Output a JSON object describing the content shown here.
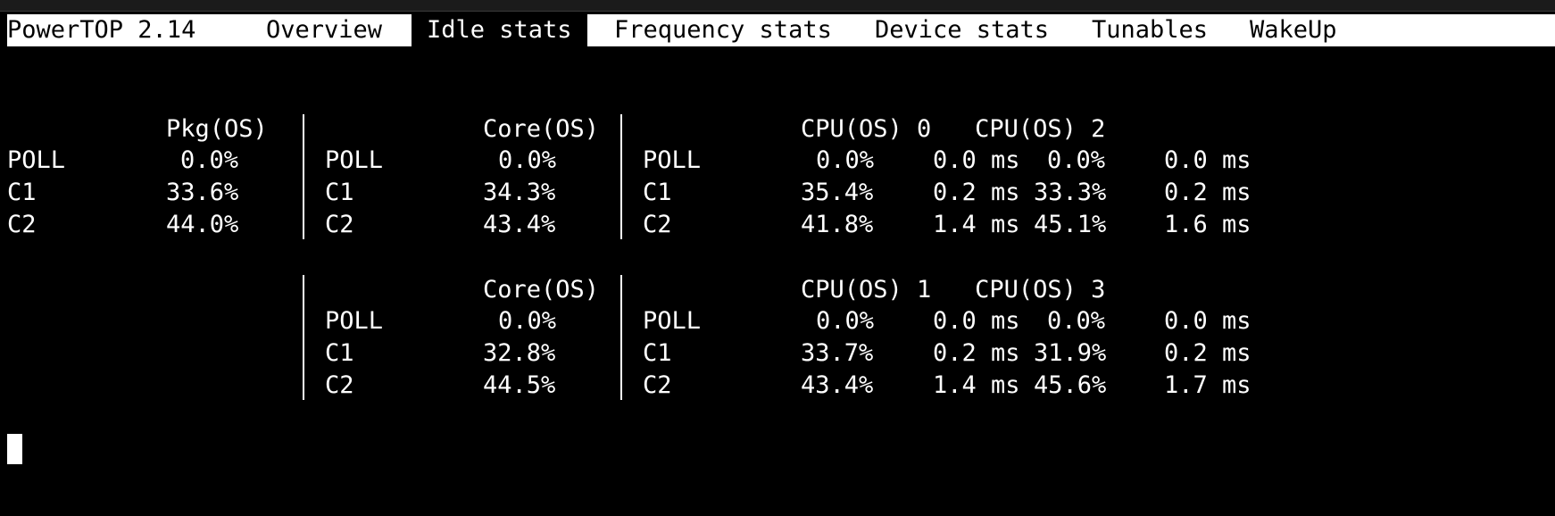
{
  "window": {
    "app_title": "PowerTOP 2.14",
    "tabs": [
      "Overview",
      "Idle stats",
      "Frequency stats",
      "Device stats",
      "Tunables",
      "WakeUp"
    ],
    "active_tab": "Idle stats"
  },
  "pkg": {
    "header": "Pkg(OS)",
    "rows": [
      {
        "state": "POLL",
        "pct": "0.0%"
      },
      {
        "state": "C1",
        "pct": "33.6%"
      },
      {
        "state": "C2",
        "pct": "44.0%"
      }
    ]
  },
  "cores": [
    {
      "header": "Core(OS)",
      "rows": [
        {
          "state": "POLL",
          "pct": "0.0%"
        },
        {
          "state": "C1",
          "pct": "34.3%"
        },
        {
          "state": "C2",
          "pct": "43.4%"
        }
      ],
      "cpus": {
        "header": "CPU(OS) 0   CPU(OS) 2",
        "rows": [
          {
            "state": "POLL",
            "a_pct": "0.0%",
            "a_ms": "0.0 ms",
            "b_pct": "0.0%",
            "b_ms": "0.0 ms"
          },
          {
            "state": "C1",
            "a_pct": "35.4%",
            "a_ms": "0.2 ms",
            "b_pct": "33.3%",
            "b_ms": "0.2 ms"
          },
          {
            "state": "C2",
            "a_pct": "41.8%",
            "a_ms": "1.4 ms",
            "b_pct": "45.1%",
            "b_ms": "1.6 ms"
          }
        ]
      }
    },
    {
      "header": "Core(OS)",
      "rows": [
        {
          "state": "POLL",
          "pct": "0.0%"
        },
        {
          "state": "C1",
          "pct": "32.8%"
        },
        {
          "state": "C2",
          "pct": "44.5%"
        }
      ],
      "cpus": {
        "header": "CPU(OS) 1   CPU(OS) 3",
        "rows": [
          {
            "state": "POLL",
            "a_pct": "0.0%",
            "a_ms": "0.0 ms",
            "b_pct": "0.0%",
            "b_ms": "0.0 ms"
          },
          {
            "state": "C1",
            "a_pct": "33.7%",
            "a_ms": "0.2 ms",
            "b_pct": "31.9%",
            "b_ms": "0.2 ms"
          },
          {
            "state": "C2",
            "a_pct": "43.4%",
            "a_ms": "1.4 ms",
            "b_pct": "45.6%",
            "b_ms": "1.7 ms"
          }
        ]
      }
    }
  ],
  "colors": {
    "background": "#000000",
    "foreground": "#ffffff"
  }
}
